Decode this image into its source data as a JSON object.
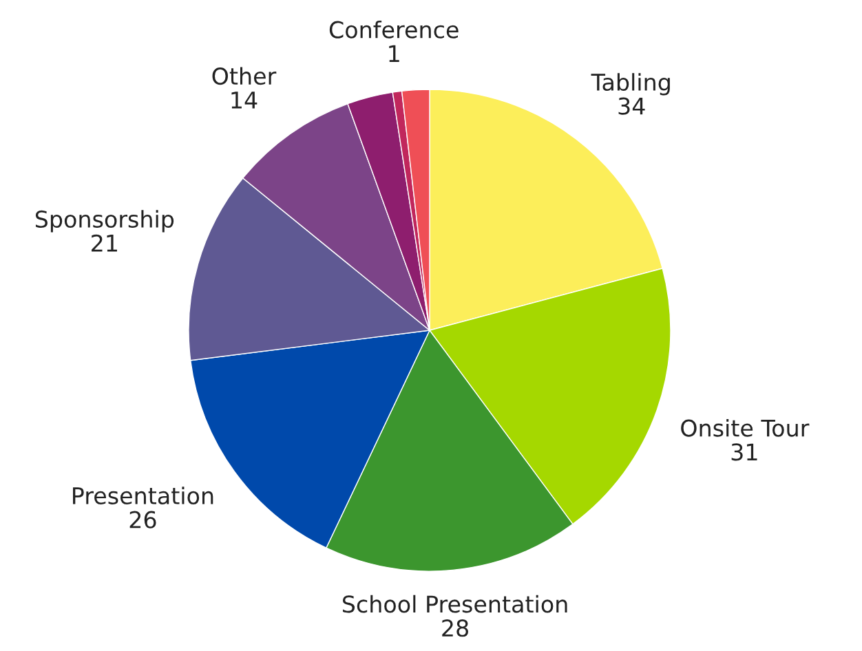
{
  "chart_data": {
    "type": "pie",
    "categories": [
      "Tabling",
      "Onsite Tour",
      "School Presentation",
      "Presentation",
      "Sponsorship",
      "Other",
      null,
      "Conference",
      null
    ],
    "values": [
      34,
      31,
      28,
      26,
      21,
      14,
      5,
      1,
      3
    ],
    "colors": [
      "#fcee5a",
      "#a5d800",
      "#3c962e",
      "#0049ab",
      "#5f5993",
      "#7c4488",
      "#8e1e6e",
      "#c1275c",
      "#ef4f56"
    ],
    "value_labels": [
      "34",
      "31",
      "28",
      "26",
      "21",
      "14",
      null,
      "1",
      null
    ],
    "legend": false
  }
}
